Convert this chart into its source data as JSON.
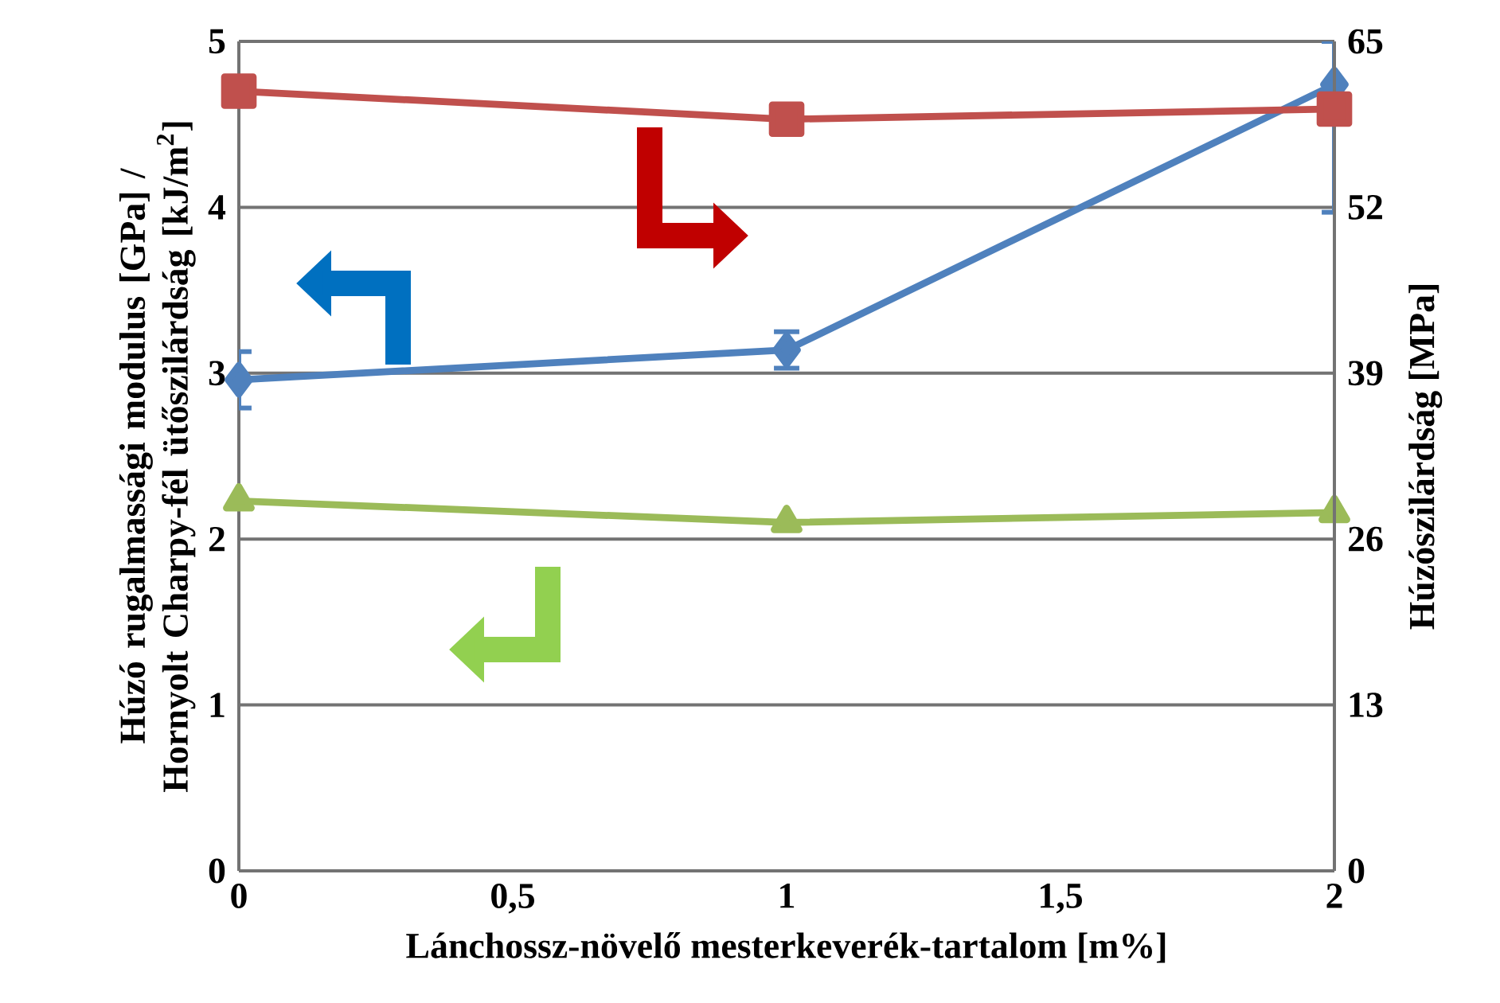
{
  "chart_data": {
    "type": "line",
    "xlabel": "Lánchossz-növelő mesterkeverék-tartalom [m%]",
    "ylabel": "Húzó rugalmassági modulus [GPa] / Hornyolt Charpy-fél ütőszilárdság [kJ/m$^{2}$]",
    "y2label": "Húzószilárdság [MPa]",
    "x": [
      0,
      1,
      2
    ],
    "series": [
      {
        "color": "#4f81bd",
        "marker": "diamond",
        "values": [
          2.96,
          3.14,
          4.74
        ],
        "errors": [
          [
            2.79,
            3.13
          ],
          [
            3.03,
            3.25
          ],
          [
            3.97,
            5.0
          ]
        ]
      },
      {
        "color": "#c0504d",
        "marker": "square",
        "axis": "y2",
        "values": [
          61.1,
          58.9,
          59.7
        ]
      },
      {
        "color": "#9bbb59",
        "marker": "triangle",
        "values": [
          2.23,
          2.1,
          2.16
        ]
      }
    ],
    "xlim": [
      0,
      2
    ],
    "xticks": [
      0,
      {
        "value": 0.5,
        "label": "0,5"
      },
      1,
      {
        "value": 1.5,
        "label": "1,5"
      },
      2
    ],
    "ylim": [
      0,
      5
    ],
    "yticks": [
      0,
      1,
      2,
      3,
      4,
      5
    ],
    "y2lim": [
      0,
      65
    ],
    "y2ticks": [
      0,
      13,
      26,
      39,
      52,
      65
    ],
    "grid": "y",
    "line_style": "solid"
  }
}
